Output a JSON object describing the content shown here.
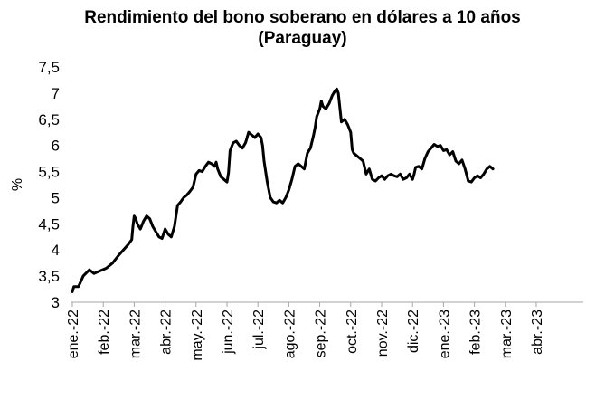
{
  "chart_data": {
    "type": "line",
    "title": "Rendimiento del bono soberano en dólares a 10 años",
    "subtitle": "(Paraguay)",
    "xlabel": "",
    "ylabel": "%",
    "ylim": [
      3,
      7.5
    ],
    "yticks": [
      "3",
      "3,5",
      "4",
      "4,5",
      "5",
      "5,5",
      "6",
      "6,5",
      "7",
      "7,5"
    ],
    "xticks": [
      "ene.-22",
      "feb.-22",
      "mar.-22",
      "abr.-22",
      "may.-22",
      "jun.-22",
      "jul.-22",
      "ago.-22",
      "sep.-22",
      "oct.-22",
      "nov.-22",
      "dic.-22",
      "ene.-23",
      "feb.-23",
      "mar.-23",
      "abr.-23"
    ],
    "grid": false,
    "legend": "none",
    "series": [
      {
        "color": "#000000",
        "points": [
          [
            0,
            3.2
          ],
          [
            0.05,
            3.3
          ],
          [
            0.2,
            3.3
          ],
          [
            0.35,
            3.5
          ],
          [
            0.55,
            3.62
          ],
          [
            0.7,
            3.55
          ],
          [
            0.9,
            3.6
          ],
          [
            1.1,
            3.65
          ],
          [
            1.3,
            3.75
          ],
          [
            1.5,
            3.9
          ],
          [
            1.65,
            4.0
          ],
          [
            1.8,
            4.1
          ],
          [
            1.92,
            4.2
          ],
          [
            1.96,
            4.45
          ],
          [
            2.0,
            4.65
          ],
          [
            2.05,
            4.6
          ],
          [
            2.1,
            4.5
          ],
          [
            2.2,
            4.4
          ],
          [
            2.3,
            4.55
          ],
          [
            2.4,
            4.65
          ],
          [
            2.5,
            4.6
          ],
          [
            2.6,
            4.45
          ],
          [
            2.7,
            4.35
          ],
          [
            2.8,
            4.25
          ],
          [
            2.9,
            4.22
          ],
          [
            3.0,
            4.4
          ],
          [
            3.1,
            4.3
          ],
          [
            3.2,
            4.25
          ],
          [
            3.3,
            4.45
          ],
          [
            3.4,
            4.85
          ],
          [
            3.5,
            4.92
          ],
          [
            3.6,
            5.0
          ],
          [
            3.7,
            5.05
          ],
          [
            3.8,
            5.12
          ],
          [
            3.9,
            5.2
          ],
          [
            4.0,
            5.45
          ],
          [
            4.1,
            5.52
          ],
          [
            4.2,
            5.5
          ],
          [
            4.3,
            5.6
          ],
          [
            4.4,
            5.68
          ],
          [
            4.5,
            5.65
          ],
          [
            4.6,
            5.6
          ],
          [
            4.65,
            5.68
          ],
          [
            4.7,
            5.55
          ],
          [
            4.8,
            5.4
          ],
          [
            4.9,
            5.35
          ],
          [
            5.0,
            5.3
          ],
          [
            5.05,
            5.48
          ],
          [
            5.1,
            5.9
          ],
          [
            5.2,
            6.05
          ],
          [
            5.3,
            6.08
          ],
          [
            5.4,
            6.0
          ],
          [
            5.5,
            5.95
          ],
          [
            5.6,
            6.05
          ],
          [
            5.7,
            6.25
          ],
          [
            5.8,
            6.2
          ],
          [
            5.9,
            6.15
          ],
          [
            6.0,
            6.22
          ],
          [
            6.1,
            6.15
          ],
          [
            6.15,
            6.0
          ],
          [
            6.2,
            5.7
          ],
          [
            6.3,
            5.3
          ],
          [
            6.4,
            5.0
          ],
          [
            6.5,
            4.92
          ],
          [
            6.6,
            4.9
          ],
          [
            6.7,
            4.95
          ],
          [
            6.8,
            4.9
          ],
          [
            6.9,
            5.0
          ],
          [
            7.0,
            5.15
          ],
          [
            7.1,
            5.35
          ],
          [
            7.2,
            5.6
          ],
          [
            7.3,
            5.65
          ],
          [
            7.4,
            5.6
          ],
          [
            7.5,
            5.55
          ],
          [
            7.6,
            5.85
          ],
          [
            7.7,
            5.95
          ],
          [
            7.8,
            6.2
          ],
          [
            7.85,
            6.35
          ],
          [
            7.9,
            6.55
          ],
          [
            8.0,
            6.7
          ],
          [
            8.05,
            6.85
          ],
          [
            8.1,
            6.75
          ],
          [
            8.2,
            6.7
          ],
          [
            8.3,
            6.8
          ],
          [
            8.4,
            6.95
          ],
          [
            8.5,
            7.05
          ],
          [
            8.55,
            7.08
          ],
          [
            8.6,
            7.0
          ],
          [
            8.7,
            6.45
          ],
          [
            8.8,
            6.5
          ],
          [
            8.9,
            6.4
          ],
          [
            9.0,
            6.25
          ],
          [
            9.05,
            5.92
          ],
          [
            9.1,
            5.85
          ],
          [
            9.2,
            5.8
          ],
          [
            9.3,
            5.75
          ],
          [
            9.4,
            5.7
          ],
          [
            9.5,
            5.45
          ],
          [
            9.6,
            5.55
          ],
          [
            9.7,
            5.35
          ],
          [
            9.8,
            5.32
          ],
          [
            9.9,
            5.38
          ],
          [
            10.0,
            5.42
          ],
          [
            10.1,
            5.35
          ],
          [
            10.2,
            5.42
          ],
          [
            10.3,
            5.45
          ],
          [
            10.4,
            5.42
          ],
          [
            10.5,
            5.4
          ],
          [
            10.6,
            5.45
          ],
          [
            10.7,
            5.35
          ],
          [
            10.8,
            5.38
          ],
          [
            10.9,
            5.45
          ],
          [
            11.0,
            5.35
          ],
          [
            11.05,
            5.45
          ],
          [
            11.1,
            5.58
          ],
          [
            11.2,
            5.6
          ],
          [
            11.3,
            5.55
          ],
          [
            11.4,
            5.75
          ],
          [
            11.5,
            5.88
          ],
          [
            11.6,
            5.95
          ],
          [
            11.7,
            6.02
          ],
          [
            11.8,
            5.98
          ],
          [
            11.9,
            6.0
          ],
          [
            12.0,
            5.9
          ],
          [
            12.1,
            5.92
          ],
          [
            12.2,
            5.82
          ],
          [
            12.3,
            5.88
          ],
          [
            12.4,
            5.7
          ],
          [
            12.5,
            5.65
          ],
          [
            12.6,
            5.72
          ],
          [
            12.7,
            5.55
          ],
          [
            12.8,
            5.32
          ],
          [
            12.9,
            5.3
          ],
          [
            13.0,
            5.38
          ],
          [
            13.1,
            5.42
          ],
          [
            13.2,
            5.38
          ],
          [
            13.3,
            5.45
          ],
          [
            13.4,
            5.55
          ],
          [
            13.5,
            5.6
          ],
          [
            13.6,
            5.55
          ]
        ]
      }
    ]
  }
}
